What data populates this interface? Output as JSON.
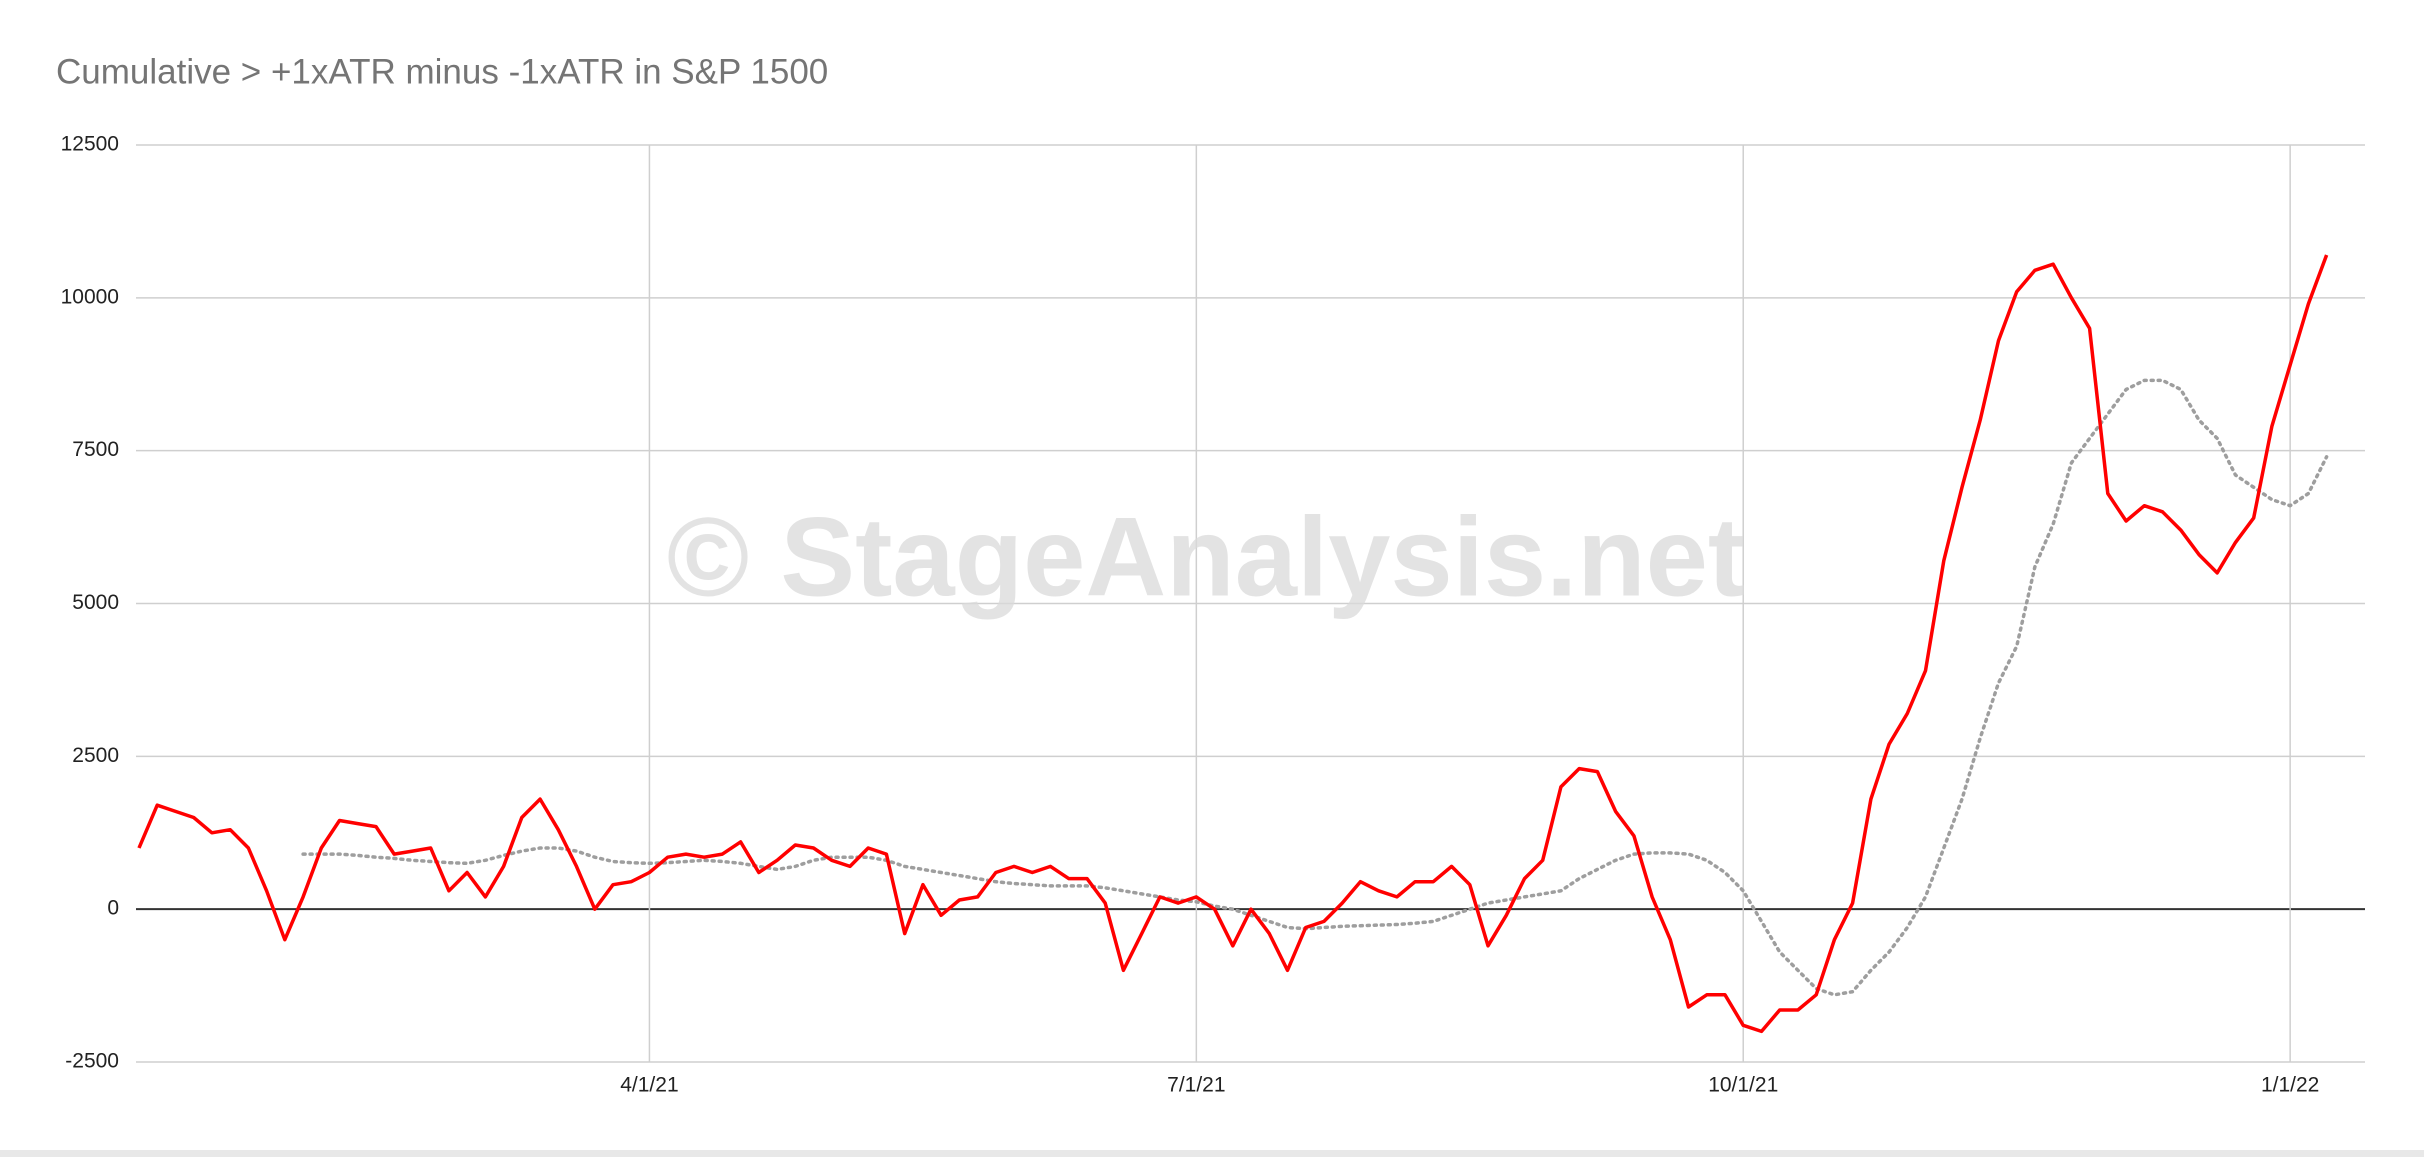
{
  "chart_data": {
    "type": "line",
    "title": "Cumulative > +1xATR minus -1xATR in S&P 1500",
    "watermark": "© StageAnalysis.net",
    "categories": [
      null,
      null,
      null,
      null,
      null,
      null,
      null,
      null,
      null,
      null,
      null,
      null,
      null,
      null,
      null,
      null,
      null,
      null,
      null,
      null,
      null,
      null,
      null,
      null,
      null,
      null,
      null,
      null,
      "4/1/21",
      null,
      null,
      null,
      null,
      null,
      null,
      null,
      null,
      null,
      null,
      null,
      null,
      null,
      null,
      null,
      null,
      null,
      null,
      null,
      null,
      null,
      null,
      null,
      null,
      null,
      null,
      null,
      null,
      null,
      "7/1/21",
      null,
      null,
      null,
      null,
      null,
      null,
      null,
      null,
      null,
      null,
      null,
      null,
      null,
      null,
      null,
      null,
      null,
      null,
      null,
      null,
      null,
      null,
      null,
      null,
      null,
      null,
      null,
      null,
      null,
      "10/1/21",
      null,
      null,
      null,
      null,
      null,
      null,
      null,
      null,
      null,
      null,
      null,
      null,
      null,
      null,
      null,
      null,
      null,
      null,
      null,
      null,
      null,
      null,
      null,
      null,
      null,
      null,
      null,
      null,
      null,
      "1/1/22",
      null,
      null
    ],
    "series": [
      {
        "color": "#ff0000",
        "dash": false,
        "values": [
          1000,
          1700,
          1600,
          1500,
          1250,
          1300,
          1000,
          300,
          -500,
          200,
          1000,
          1450,
          1400,
          1350,
          900,
          950,
          1000,
          300,
          600,
          200,
          700,
          1500,
          1800,
          1300,
          700,
          0,
          400,
          450,
          600,
          850,
          900,
          850,
          900,
          1100,
          600,
          800,
          1050,
          1000,
          800,
          700,
          1000,
          900,
          -400,
          400,
          -100,
          150,
          200,
          600,
          700,
          600,
          700,
          500,
          500,
          100,
          -1000,
          -400,
          200,
          100,
          200,
          0,
          -600,
          0,
          -400,
          -1000,
          -300,
          -200,
          100,
          450,
          300,
          200,
          450,
          450,
          700,
          400,
          -600,
          -100,
          500,
          800,
          2000,
          2300,
          2250,
          1600,
          1200,
          200,
          -500,
          -1600,
          -1400,
          -1400,
          -1900,
          -2000,
          -1650,
          -1650,
          -1400,
          -500,
          100,
          1800,
          2700,
          3200,
          3900,
          5700,
          6900,
          8000,
          9300,
          10100,
          10450,
          10550,
          10000,
          9500,
          6800,
          6350,
          6600,
          6500,
          6200,
          5800,
          5500,
          6000,
          6400,
          7900,
          8900,
          9900,
          10700
        ]
      },
      {
        "color": "#9e9e9e",
        "dash": true,
        "values": [
          null,
          null,
          null,
          null,
          null,
          null,
          null,
          null,
          null,
          900,
          900,
          900,
          880,
          850,
          830,
          800,
          780,
          760,
          750,
          800,
          880,
          950,
          1000,
          1000,
          950,
          850,
          780,
          760,
          750,
          760,
          780,
          800,
          780,
          750,
          700,
          650,
          700,
          800,
          850,
          850,
          850,
          800,
          700,
          650,
          600,
          550,
          500,
          450,
          420,
          400,
          380,
          380,
          380,
          350,
          300,
          250,
          200,
          150,
          120,
          50,
          0,
          -100,
          -200,
          -300,
          -320,
          -300,
          -280,
          -270,
          -260,
          -250,
          -230,
          -200,
          -100,
          0,
          100,
          150,
          200,
          250,
          300,
          500,
          650,
          800,
          900,
          920,
          920,
          900,
          800,
          600,
          300,
          -200,
          -700,
          -1000,
          -1300,
          -1400,
          -1350,
          -1000,
          -700,
          -300,
          200,
          1000,
          1800,
          2800,
          3700,
          4300,
          5600,
          6300,
          7300,
          7700,
          8100,
          8500,
          8650,
          8650,
          8500,
          8000,
          7700,
          7100,
          6900,
          6700,
          6600,
          6800,
          7400
        ]
      }
    ],
    "ylim": [
      -2500,
      12500
    ],
    "yticks": [
      -2500,
      0,
      2500,
      5000,
      7500,
      10000,
      12500
    ],
    "grid": true
  }
}
